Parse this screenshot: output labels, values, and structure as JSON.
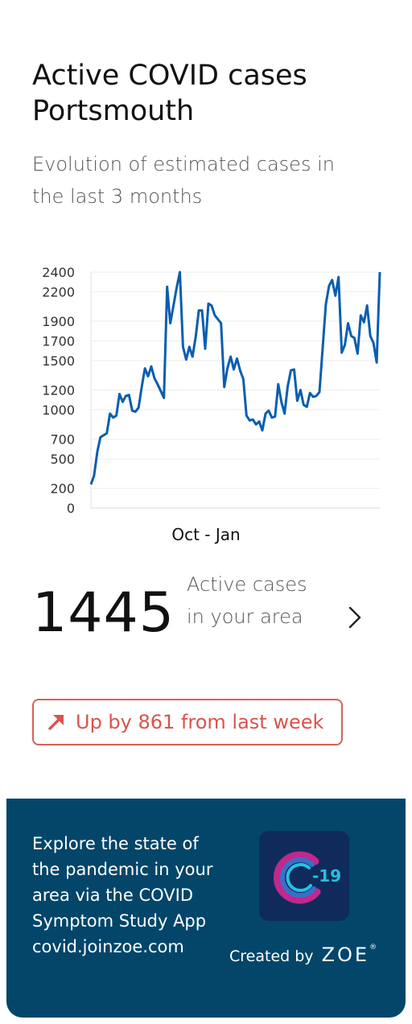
{
  "header": {
    "title": "Active COVID cases Portsmouth",
    "subtitle": "Evolution of estimated cases in the last 3 months"
  },
  "chart_data": {
    "type": "line",
    "title": "",
    "xlabel": "Oct - Jan",
    "ylabel": "",
    "yticks": [
      0,
      200,
      500,
      700,
      1000,
      1200,
      1500,
      1700,
      1900,
      2200,
      2400
    ],
    "ylim": [
      0,
      2400
    ],
    "grid": true,
    "series": [
      {
        "color": "#0a5eb0",
        "values": [
          240,
          330,
          570,
          720,
          740,
          760,
          960,
          920,
          940,
          1160,
          1080,
          1140,
          1150,
          990,
          980,
          1020,
          1230,
          1420,
          1340,
          1440,
          1320,
          1260,
          1190,
          1120,
          2250,
          1880,
          2060,
          2240,
          2400,
          1640,
          1510,
          1640,
          1540,
          1740,
          2010,
          2010,
          1620,
          2080,
          2060,
          1960,
          1920,
          1880,
          1230,
          1420,
          1540,
          1410,
          1520,
          1400,
          1310,
          940,
          890,
          900,
          850,
          880,
          790,
          960,
          990,
          920,
          930,
          1260,
          1080,
          960,
          1240,
          1400,
          1410,
          1090,
          1200,
          1050,
          1030,
          1170,
          1130,
          1140,
          1180,
          1630,
          2070,
          2260,
          2320,
          2160,
          2350,
          1580,
          1660,
          1880,
          1750,
          1730,
          1570,
          1960,
          1890,
          2060,
          1750,
          1680,
          1480,
          2400
        ]
      }
    ]
  },
  "stat": {
    "value": "1445",
    "label": "Active cases in your area"
  },
  "trend": {
    "text": "Up by 861 from last week",
    "color": "#d9544d"
  },
  "promo": {
    "text": "Explore the state of the pandemic in your area via the COVID Symptom Study App",
    "link": "covid.joinzoe.com",
    "icon_text": "-19",
    "credit_prefix": "Created by",
    "brand": "ZOE",
    "reg": "®",
    "background": "#03466a"
  }
}
